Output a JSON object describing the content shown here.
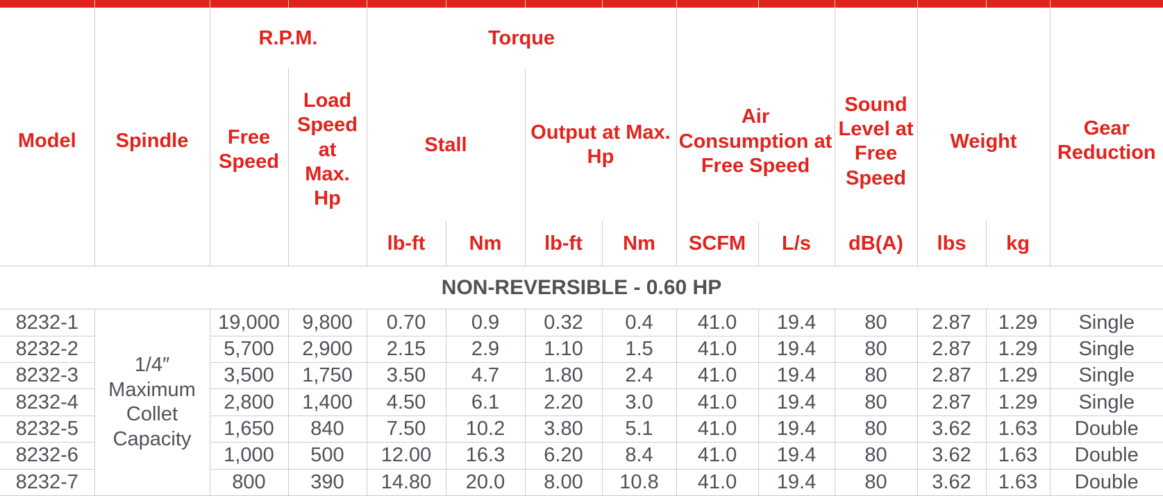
{
  "colors": {
    "accent_red": "#e2231d",
    "header_text_red": "#e2231d",
    "body_text": "#4d5257",
    "border": "#cccccc",
    "background": "#ffffff"
  },
  "header": {
    "model": "Model",
    "spindle": "Spindle",
    "rpm_group": "R.P.M.",
    "torque_group": "Torque",
    "air_group": "Air Consumption at Free Speed",
    "sound_group": "Sound Level at Free Speed",
    "weight_group": "Weight",
    "gear": "Gear Reduction",
    "free_speed": "Free Speed",
    "load_speed": "Load Speed at Max. Hp",
    "stall": "Stall",
    "output": "Output at Max. Hp",
    "units": {
      "stall_lbft": "lb-ft",
      "stall_nm": "Nm",
      "output_lbft": "lb-ft",
      "output_nm": "Nm",
      "air_scfm": "SCFM",
      "air_ls": "L/s",
      "sound_db": "dB(A)",
      "weight_lbs": "lbs",
      "weight_kg": "kg"
    }
  },
  "section_title": "NON-REVERSIBLE - 0.60 HP",
  "spindle_note": "1/4″ Maximum Collet Capacity",
  "rows": [
    {
      "model": "8232-1",
      "free_speed": "19,000",
      "load_speed": "9,800",
      "stall_lbft": "0.70",
      "stall_nm": "0.9",
      "output_lbft": "0.32",
      "output_nm": "0.4",
      "scfm": "41.0",
      "ls": "19.4",
      "db": "80",
      "lbs": "2.87",
      "kg": "1.29",
      "gear": "Single"
    },
    {
      "model": "8232-2",
      "free_speed": "5,700",
      "load_speed": "2,900",
      "stall_lbft": "2.15",
      "stall_nm": "2.9",
      "output_lbft": "1.10",
      "output_nm": "1.5",
      "scfm": "41.0",
      "ls": "19.4",
      "db": "80",
      "lbs": "2.87",
      "kg": "1.29",
      "gear": "Single"
    },
    {
      "model": "8232-3",
      "free_speed": "3,500",
      "load_speed": "1,750",
      "stall_lbft": "3.50",
      "stall_nm": "4.7",
      "output_lbft": "1.80",
      "output_nm": "2.4",
      "scfm": "41.0",
      "ls": "19.4",
      "db": "80",
      "lbs": "2.87",
      "kg": "1.29",
      "gear": "Single"
    },
    {
      "model": "8232-4",
      "free_speed": "2,800",
      "load_speed": "1,400",
      "stall_lbft": "4.50",
      "stall_nm": "6.1",
      "output_lbft": "2.20",
      "output_nm": "3.0",
      "scfm": "41.0",
      "ls": "19.4",
      "db": "80",
      "lbs": "2.87",
      "kg": "1.29",
      "gear": "Single"
    },
    {
      "model": "8232-5",
      "free_speed": "1,650",
      "load_speed": "840",
      "stall_lbft": "7.50",
      "stall_nm": "10.2",
      "output_lbft": "3.80",
      "output_nm": "5.1",
      "scfm": "41.0",
      "ls": "19.4",
      "db": "80",
      "lbs": "3.62",
      "kg": "1.63",
      "gear": "Double"
    },
    {
      "model": "8232-6",
      "free_speed": "1,000",
      "load_speed": "500",
      "stall_lbft": "12.00",
      "stall_nm": "16.3",
      "output_lbft": "6.20",
      "output_nm": "8.4",
      "scfm": "41.0",
      "ls": "19.4",
      "db": "80",
      "lbs": "3.62",
      "kg": "1.63",
      "gear": "Double"
    },
    {
      "model": "8232-7",
      "free_speed": "800",
      "load_speed": "390",
      "stall_lbft": "14.80",
      "stall_nm": "20.0",
      "output_lbft": "8.00",
      "output_nm": "10.8",
      "scfm": "41.0",
      "ls": "19.4",
      "db": "80",
      "lbs": "3.62",
      "kg": "1.63",
      "gear": "Double"
    }
  ]
}
